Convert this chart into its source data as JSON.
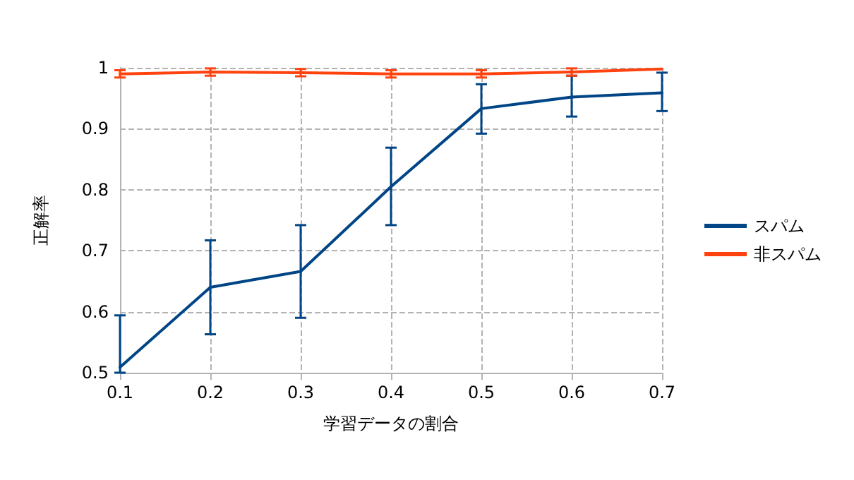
{
  "chart_data": {
    "type": "line",
    "xlabel": "学習データの割合",
    "ylabel": "正解率",
    "x": [
      0.1,
      0.2,
      0.3,
      0.4,
      0.5,
      0.6,
      0.7
    ],
    "series": [
      {
        "name": "スパム",
        "color": "#004586",
        "values": [
          0.509,
          0.64,
          0.666,
          0.805,
          0.933,
          0.952,
          0.959
        ],
        "errors": [
          [
            0.5,
            0.594
          ],
          [
            0.563,
            0.717
          ],
          [
            0.59,
            0.742
          ],
          [
            0.742,
            0.869
          ],
          [
            0.892,
            0.973
          ],
          [
            0.92,
            0.987
          ],
          [
            0.929,
            0.992
          ]
        ]
      },
      {
        "name": "非スパム",
        "color": "#ff420e",
        "values": [
          0.99,
          0.993,
          0.992,
          0.99,
          0.99,
          0.993,
          0.998
        ],
        "errors": [
          0.006,
          0.006,
          0.006,
          0.006,
          0.006,
          0.006,
          null
        ]
      }
    ],
    "xlim": [
      0.1,
      0.7
    ],
    "xticks": [
      0.1,
      0.2,
      0.3,
      0.4,
      0.5,
      0.6,
      0.7
    ],
    "ylim": [
      0.5,
      1
    ],
    "yticks": [
      0.5,
      0.6,
      0.7,
      0.8,
      0.9,
      1
    ],
    "grid": true,
    "legend": "right",
    "marker": "none",
    "line_style": "solid"
  }
}
